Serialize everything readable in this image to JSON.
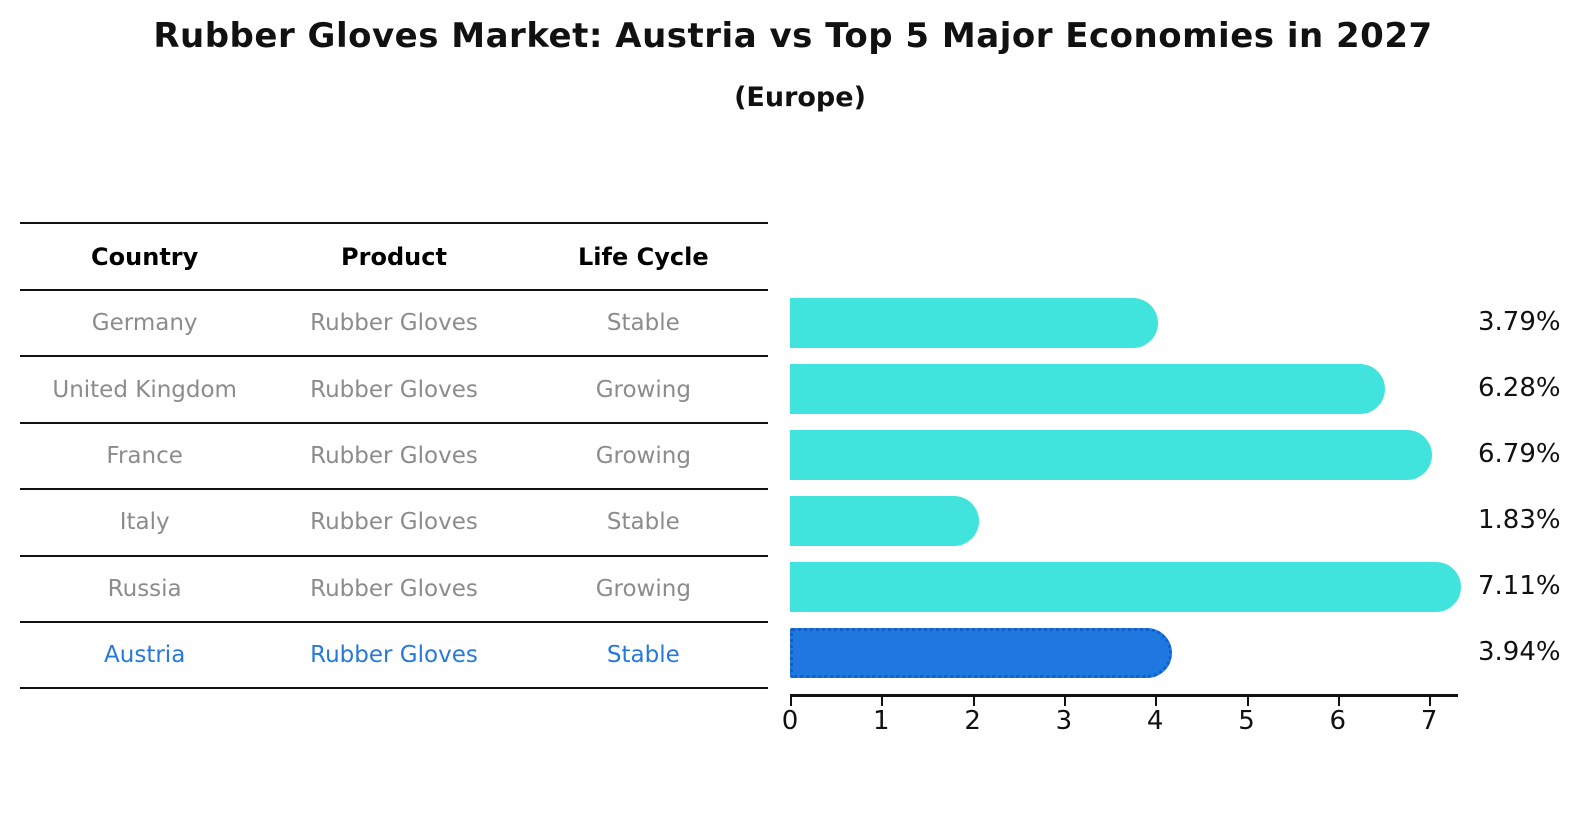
{
  "title": "Rubber Gloves Market: Austria vs Top 5 Major Economies in 2027",
  "subtitle": "(Europe)",
  "table": {
    "headers": [
      "Country",
      "Product",
      "Life Cycle"
    ],
    "rows": [
      {
        "country": "Germany",
        "product": "Rubber Gloves",
        "life_cycle": "Stable",
        "highlight": false
      },
      {
        "country": "United Kingdom",
        "product": "Rubber Gloves",
        "life_cycle": "Growing",
        "highlight": false
      },
      {
        "country": "France",
        "product": "Rubber Gloves",
        "life_cycle": "Growing",
        "highlight": false
      },
      {
        "country": "Italy",
        "product": "Rubber Gloves",
        "life_cycle": "Stable",
        "highlight": false
      },
      {
        "country": "Russia",
        "product": "Rubber Gloves",
        "life_cycle": "Growing",
        "highlight": false
      },
      {
        "country": "Austria",
        "product": "Rubber Gloves",
        "life_cycle": "Stable",
        "highlight": true
      }
    ]
  },
  "chart_data": {
    "type": "bar",
    "orientation": "horizontal",
    "title": "Rubber Gloves Market: Austria vs Top 5 Major Economies in 2027",
    "subtitle": "(Europe)",
    "categories": [
      "Germany",
      "United Kingdom",
      "France",
      "Italy",
      "Russia",
      "Austria"
    ],
    "values": [
      3.79,
      6.28,
      6.79,
      1.83,
      7.11,
      3.94
    ],
    "value_labels": [
      "3.79%",
      "6.28%",
      "6.79%",
      "1.83%",
      "7.11%",
      "3.94%"
    ],
    "x_ticks": [
      "0",
      "1",
      "2",
      "3",
      "4",
      "5",
      "6",
      "7"
    ],
    "xlim": [
      0,
      7.35
    ],
    "ylabel": "",
    "xlabel": "",
    "grid": false,
    "legend": false,
    "highlight_index": 5,
    "bar_color": "#40E4DC",
    "highlight_color": "#1F78E0",
    "highlight_border_color": "#135FC9"
  },
  "colors": {
    "background": "#FFFFFF",
    "text_primary": "#111111",
    "text_muted": "#8C8C8C",
    "highlight_text": "#2679DB",
    "line": "#111111"
  }
}
